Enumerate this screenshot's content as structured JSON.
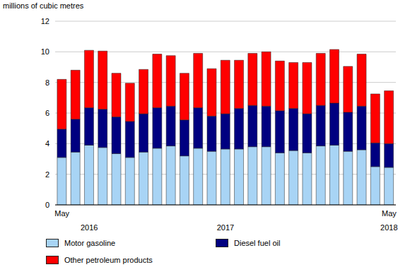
{
  "chart_data": {
    "type": "bar",
    "stacked": true,
    "grid": true,
    "y_label": "millions of cubic metres",
    "categories": [
      "May",
      null,
      null,
      null,
      null,
      null,
      null,
      null,
      null,
      null,
      null,
      null,
      null,
      null,
      null,
      null,
      null,
      null,
      null,
      null,
      null,
      null,
      null,
      null,
      "May"
    ],
    "year_labels": [
      null,
      null,
      "2016",
      null,
      null,
      null,
      null,
      null,
      null,
      null,
      null,
      null,
      "2017",
      null,
      null,
      null,
      null,
      null,
      null,
      null,
      null,
      null,
      null,
      null,
      "2018"
    ],
    "ylim": [
      0,
      12
    ],
    "yticks": [
      0,
      2,
      4,
      6,
      8,
      10,
      12
    ],
    "series": [
      {
        "name": "Motor gasoline",
        "color": "#a8d4f5",
        "values": [
          3.1,
          3.45,
          3.9,
          3.75,
          3.35,
          3.1,
          3.45,
          3.7,
          3.85,
          3.2,
          3.7,
          3.5,
          3.65,
          3.65,
          3.8,
          3.8,
          3.4,
          3.55,
          3.4,
          3.85,
          3.9,
          3.5,
          3.6,
          2.5,
          2.45
        ]
      },
      {
        "name": "Diesel fuel oil",
        "color": "#000080",
        "values": [
          1.85,
          2.15,
          2.45,
          2.5,
          2.4,
          2.35,
          2.5,
          2.65,
          2.6,
          2.35,
          2.65,
          2.3,
          2.3,
          2.65,
          2.7,
          2.65,
          2.75,
          2.75,
          2.55,
          2.65,
          2.75,
          2.55,
          2.85,
          1.55,
          1.55
        ]
      },
      {
        "name": "Other petroleum products",
        "color": "#ff0000",
        "values": [
          3.25,
          3.2,
          3.75,
          3.8,
          2.85,
          2.5,
          2.9,
          3.5,
          3.3,
          3.05,
          3.55,
          3.1,
          3.5,
          3.15,
          3.4,
          3.55,
          3.25,
          3.0,
          3.35,
          3.4,
          3.5,
          3.0,
          3.4,
          3.2,
          3.45
        ]
      }
    ]
  }
}
